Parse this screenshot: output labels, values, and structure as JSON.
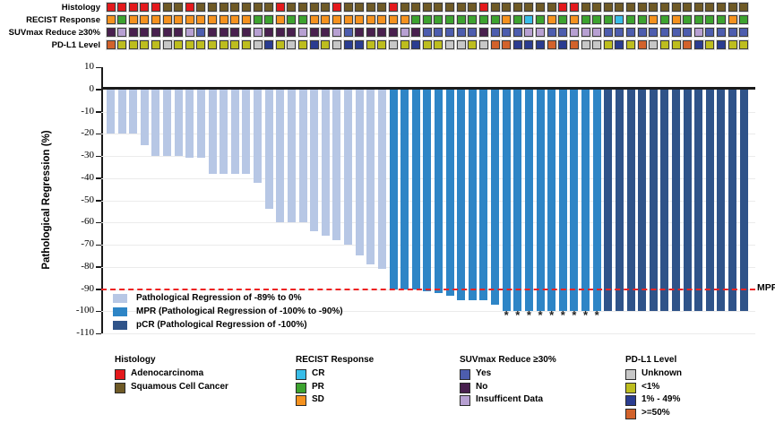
{
  "figure_title": "",
  "tracks": {
    "rows": [
      {
        "label": "Histology",
        "palette_key": "histology",
        "codes": "AAAAASSASSSSSSSASSSSASSSSASSSSSSSASSSSSSAASSSSSSSSSSSSSSS"
      },
      {
        "label": "RECIST Response",
        "palette_key": "recist",
        "codes": "SPSSSSSSSSSSSPPSPPSSSSSSSSSPPPPPPPPSPCPSPSPPPCPPSPSPPPPSP"
      },
      {
        "label": "SUVmax Reduce ≥30%",
        "palette_key": "suvmax",
        "codes": "NINNNNNIYNNNNINNNINNIYNNNNINYYYYYNYYYIIYYIIIYYYYYYYYIYYYY"
      },
      {
        "label": "PD-L1 Level",
        "palette_key": "pdl1",
        "codes": "HLLLLULLLLLLLUMLULMLUMMLLULMLLUULUHHMMMHMHUULMLHULLHMLMLL"
      }
    ],
    "palettes": {
      "histology": {
        "A": "#e4191c",
        "S": "#6f5a26"
      },
      "recist": {
        "C": "#39bde8",
        "P": "#3da32f",
        "S": "#f5921f"
      },
      "suvmax": {
        "Y": "#4d5dae",
        "N": "#49204f",
        "I": "#b7a0d2"
      },
      "pdl1": {
        "U": "#c7c7c7",
        "L": "#bdbd1e",
        "M": "#2a3c90",
        "H": "#d2622b"
      }
    }
  },
  "chart_data": {
    "type": "bar",
    "title": "",
    "xlabel": "",
    "ylabel": "Pathological Regression (%)",
    "ylim": [
      -110,
      10
    ],
    "ytick_step": 10,
    "yticks": [
      10,
      0,
      -10,
      -20,
      -30,
      -40,
      -50,
      -60,
      -70,
      -80,
      -90,
      -100,
      -110
    ],
    "grid": "horizontal-faint",
    "n_bars": 57,
    "values": [
      -20,
      -20,
      -20,
      -25,
      -30,
      -30,
      -30,
      -31,
      -31,
      -38,
      -38,
      -38,
      -38,
      -42,
      -54,
      -60,
      -60,
      -60,
      -64,
      -66,
      -68,
      -70,
      -75,
      -79,
      -81,
      -90,
      -90,
      -90,
      -91,
      -92,
      -93,
      -95,
      -95,
      -95,
      -97,
      -100,
      -100,
      -100,
      -100,
      -100,
      -100,
      -100,
      -100,
      -100,
      -100,
      -100,
      -100,
      -100,
      -100,
      -100,
      -100,
      -100,
      -100,
      -100,
      -100,
      -100,
      -100
    ],
    "category_segments": [
      {
        "category": "light",
        "from": 1,
        "to": 25
      },
      {
        "category": "mpr",
        "from": 26,
        "to": 44
      },
      {
        "category": "pcr",
        "from": 45,
        "to": 57
      }
    ],
    "asterisk_bars_1based": [
      36,
      37,
      38,
      39,
      40,
      41,
      42,
      43,
      44
    ],
    "asterisk_glyph": "*",
    "reference_line": {
      "value": -90,
      "label": "MPR",
      "style": "dashed",
      "color": "#ee2222"
    },
    "colors": {
      "light": "#b7c7e5",
      "mpr": "#2e85c6",
      "pcr": "#2f5389"
    }
  },
  "inner_legend": [
    {
      "key": "light",
      "label": "Pathological Regression of -89% to 0%"
    },
    {
      "key": "mpr",
      "label": "MPR (Pathological Regression of -100% to -90%)"
    },
    {
      "key": "pcr",
      "label": "pCR (Pathological Regression of -100%)"
    }
  ],
  "bottom_legends": [
    {
      "title": "Histology",
      "items": [
        {
          "color": "#e4191c",
          "label": "Adenocarcinoma"
        },
        {
          "color": "#6f5a26",
          "label": "Squamous Cell Cancer"
        }
      ]
    },
    {
      "title": "RECIST Response",
      "items": [
        {
          "color": "#39bde8",
          "label": "CR"
        },
        {
          "color": "#3da32f",
          "label": "PR"
        },
        {
          "color": "#f5921f",
          "label": "SD"
        }
      ]
    },
    {
      "title": "SUVmax Reduce ≥30%",
      "items": [
        {
          "color": "#4d5dae",
          "label": "Yes"
        },
        {
          "color": "#49204f",
          "label": "No"
        },
        {
          "color": "#b7a0d2",
          "label": "Insufficent Data"
        }
      ]
    },
    {
      "title": "PD-L1 Level",
      "items": [
        {
          "color": "#c7c7c7",
          "label": "Unknown"
        },
        {
          "color": "#bdbd1e",
          "label": "<1%"
        },
        {
          "color": "#2a3c90",
          "label": "1% - 49%"
        },
        {
          "color": "#d2622b",
          "label": ">=50%"
        }
      ]
    }
  ]
}
